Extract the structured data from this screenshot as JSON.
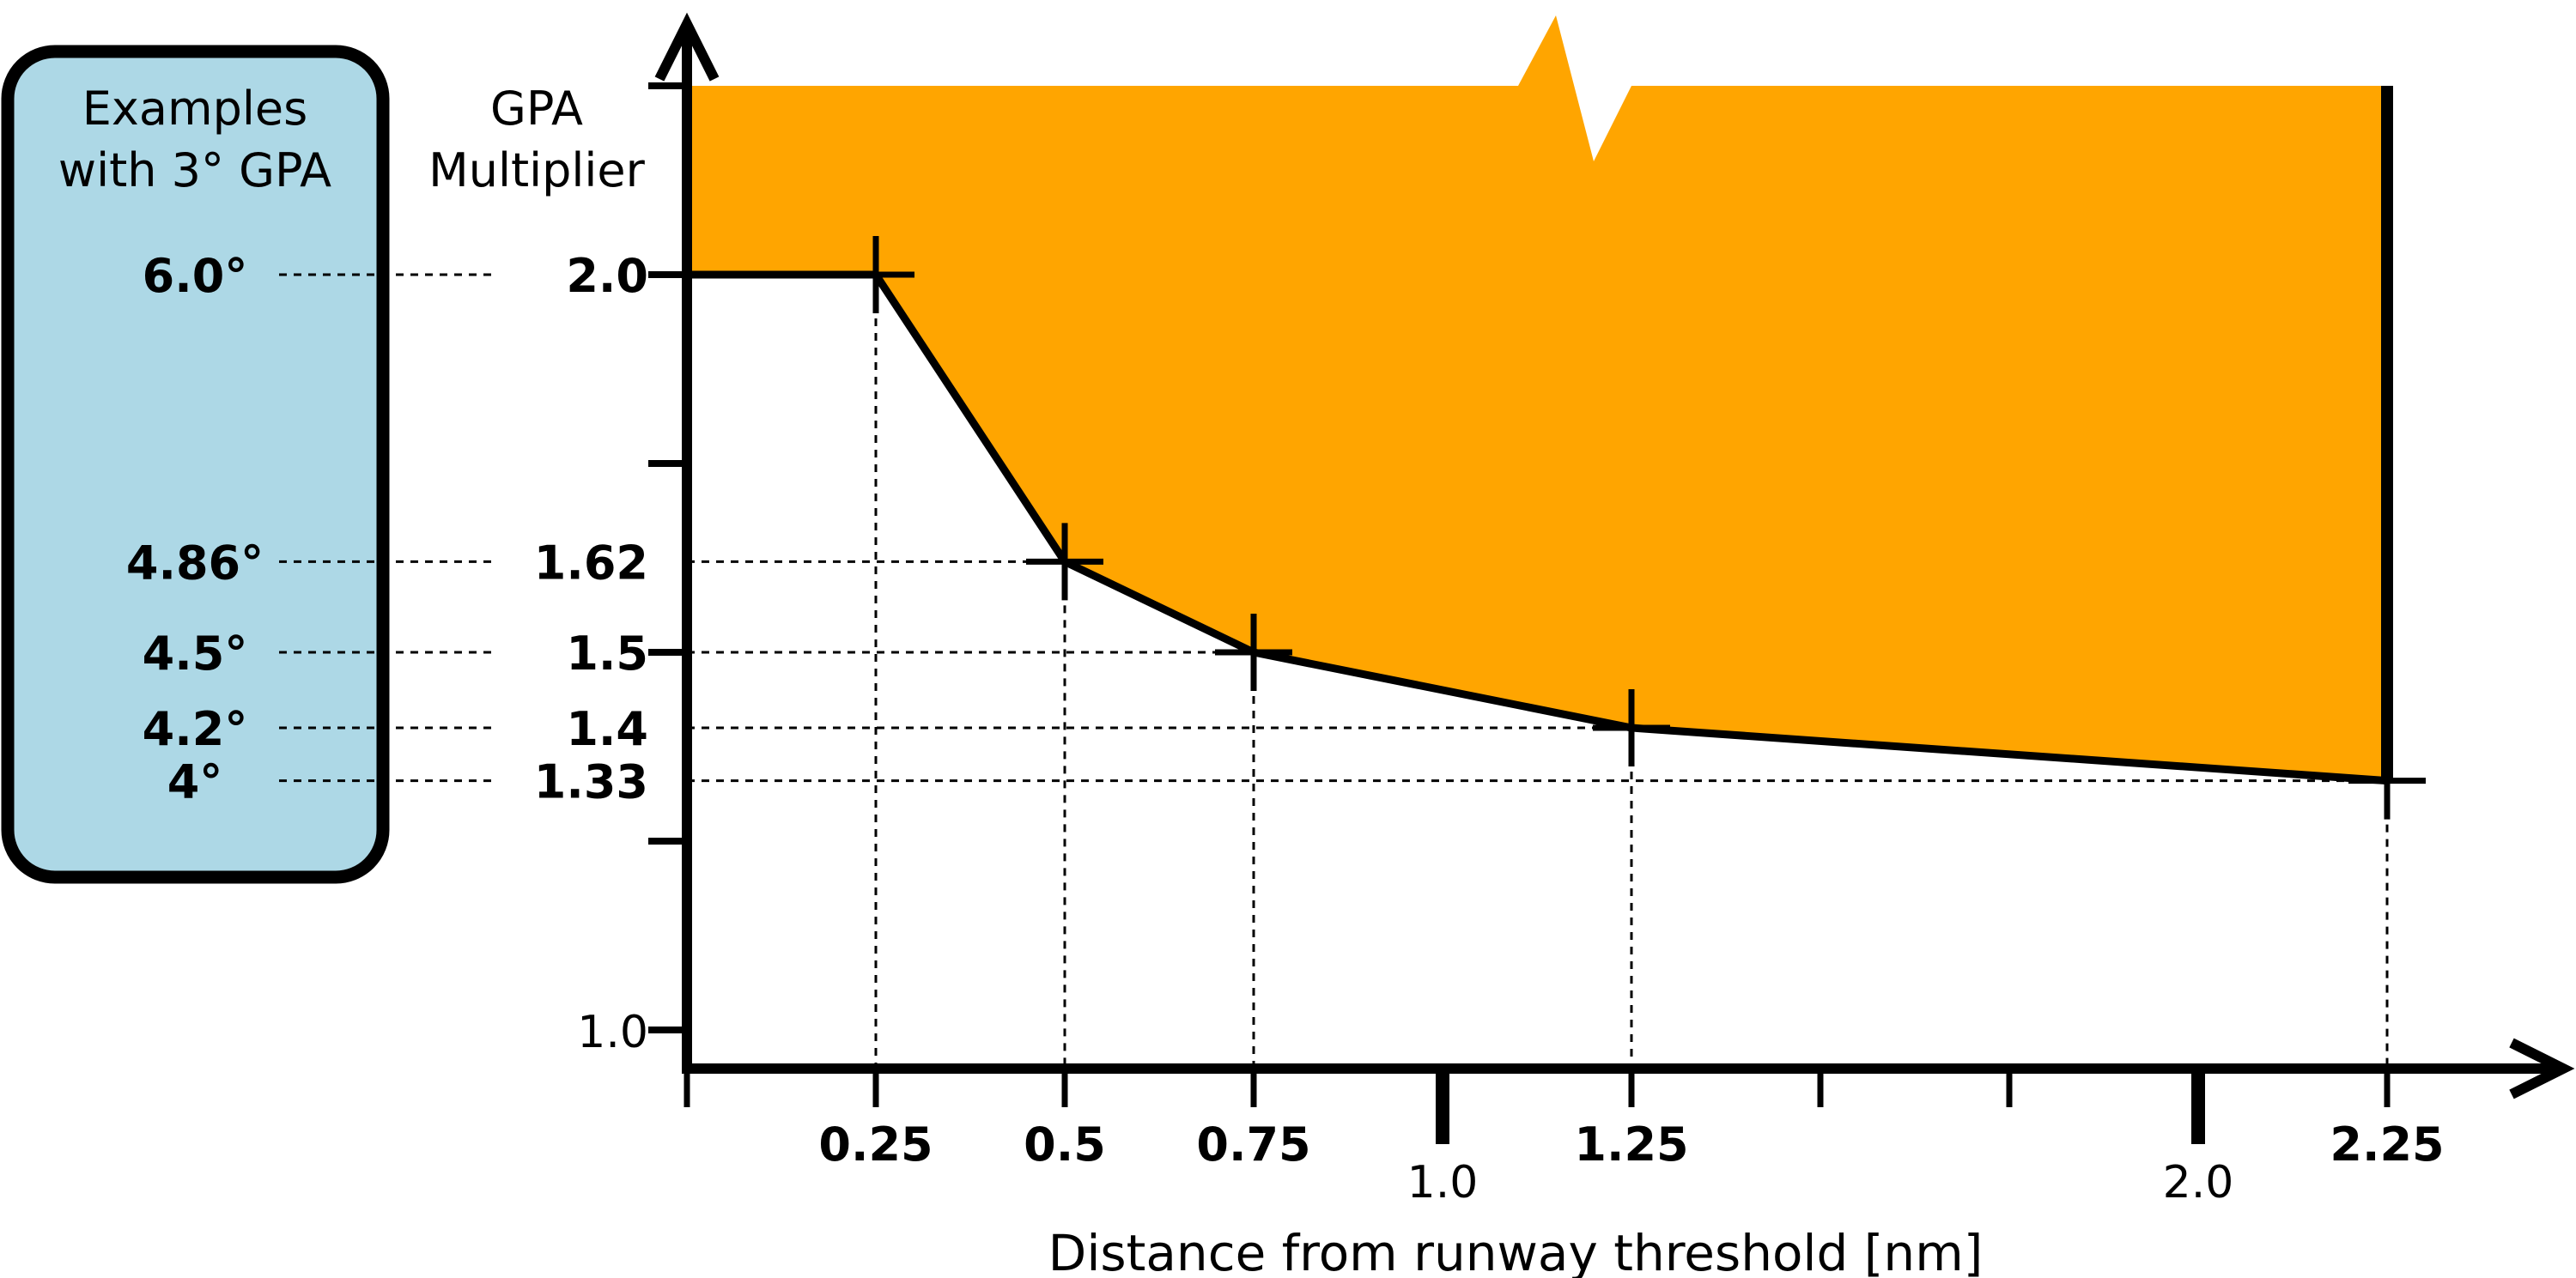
{
  "chart_data": {
    "type": "line",
    "xlabel": "Distance from runway threshold [nm]",
    "ylabel": "GPA Multiplier",
    "x_major_ticks": [
      "1.0",
      "2.0"
    ],
    "y_axis_value_label": "1.0",
    "series": [
      {
        "x": [
          0.25,
          0.5,
          0.75,
          1.25,
          2.25
        ],
        "x_labels": [
          "0.25",
          "0.5",
          "0.75",
          "1.25",
          "2.25"
        ],
        "y": [
          2.0,
          1.62,
          1.5,
          1.4,
          1.33
        ],
        "y_labels": [
          "2.0",
          "1.62",
          "1.5",
          "1.4",
          "1.33"
        ]
      }
    ],
    "region_fill_color": "#FFA500",
    "examples_panel": {
      "title_line1": "Examples",
      "title_line2": "with 3° GPA",
      "fill_color": "#ADD8E6",
      "values": [
        "6.0°",
        "4.86°",
        "4.5°",
        "4.2°",
        "4°"
      ]
    }
  }
}
